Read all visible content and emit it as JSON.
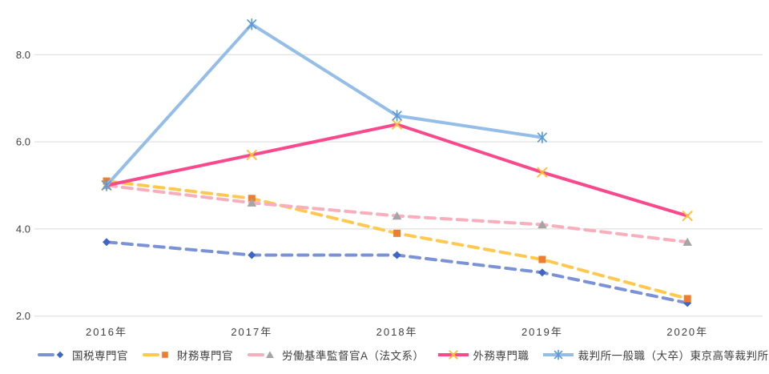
{
  "chart_data": {
    "type": "line",
    "categories": [
      "2016年",
      "2017年",
      "2018年",
      "2019年",
      "2020年"
    ],
    "series": [
      {
        "name": "国税専門官",
        "values": [
          3.7,
          3.4,
          3.4,
          3.0,
          2.3
        ],
        "line_color": "#7C92D7",
        "marker_color": "#3F66C1",
        "marker": "diamond",
        "dashed": true
      },
      {
        "name": "財務専門官",
        "values": [
          5.1,
          4.7,
          3.9,
          3.3,
          2.4
        ],
        "line_color": "#FFC94F",
        "marker_color": "#ED7D31",
        "marker": "square",
        "dashed": true
      },
      {
        "name": "労働基準監督官A（法文系）",
        "values": [
          5.0,
          4.6,
          4.3,
          4.1,
          3.7
        ],
        "line_color": "#F8AEBC",
        "marker_color": "#A5A5A5",
        "marker": "triangle",
        "dashed": true
      },
      {
        "name": "外務専門職",
        "values": [
          5.0,
          5.7,
          6.4,
          5.3,
          4.3
        ],
        "line_color": "#F8498C",
        "marker_color": "#FFC13B",
        "marker": "x",
        "dashed": false
      },
      {
        "name": "裁判所一般職（大卒）東京高等裁判所",
        "values": [
          5.0,
          8.7,
          6.6,
          6.1,
          null
        ],
        "line_color": "#94BEE7",
        "marker_color": "#5E9AD3",
        "marker": "asterisk",
        "dashed": false
      }
    ],
    "title": "",
    "xlabel": "",
    "ylabel": "",
    "ytick_labels": [
      "2.0",
      "4.0",
      "6.0",
      "8.0"
    ],
    "ylim": [
      2.0,
      8.0
    ],
    "grid": true,
    "legend_position": "bottom"
  },
  "colors": {
    "gridline": "#D9D9D9",
    "axis_text": "#404040",
    "background": "#FFFFFF"
  }
}
